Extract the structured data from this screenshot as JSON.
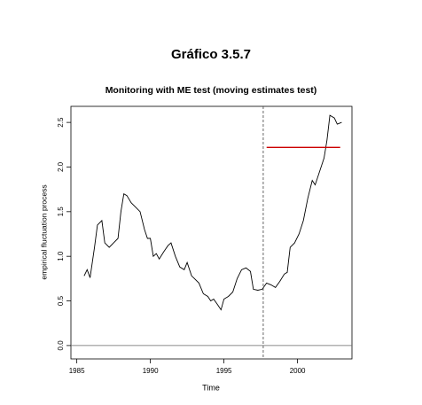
{
  "chart_data": {
    "type": "line",
    "title": "Gráfico 3.5.7",
    "subtitle": "Monitoring with ME test (moving estimates test)",
    "xlabel": "Time",
    "ylabel": "empirical fluctuation process",
    "x": [
      1985.5,
      1985.7,
      1985.9,
      1986.2,
      1986.4,
      1986.7,
      1986.9,
      1987.2,
      1987.5,
      1987.8,
      1988.0,
      1988.2,
      1988.4,
      1988.7,
      1989.0,
      1989.3,
      1989.6,
      1989.8,
      1990.0,
      1990.2,
      1990.4,
      1990.6,
      1990.9,
      1991.2,
      1991.4,
      1991.7,
      1992.0,
      1992.3,
      1992.5,
      1992.8,
      1993.0,
      1993.3,
      1993.6,
      1993.9,
      1994.1,
      1994.3,
      1994.6,
      1994.8,
      1995.0,
      1995.3,
      1995.6,
      1995.9,
      1996.2,
      1996.5,
      1996.8,
      1997.0,
      1997.3,
      1997.6,
      1997.9,
      1998.2,
      1998.5,
      1998.8,
      1999.1,
      1999.3,
      1999.5,
      1999.8,
      2000.1,
      2000.4,
      2000.7,
      2001.0,
      2001.2,
      2001.5,
      2001.8,
      2002.0,
      2002.2,
      2002.5,
      2002.7,
      2003.0
    ],
    "values": [
      0.78,
      0.85,
      0.76,
      1.1,
      1.35,
      1.4,
      1.15,
      1.1,
      1.15,
      1.2,
      1.5,
      1.7,
      1.68,
      1.6,
      1.55,
      1.5,
      1.3,
      1.2,
      1.2,
      1.0,
      1.03,
      0.97,
      1.05,
      1.12,
      1.15,
      1.0,
      0.88,
      0.85,
      0.93,
      0.78,
      0.75,
      0.7,
      0.58,
      0.55,
      0.5,
      0.52,
      0.45,
      0.4,
      0.52,
      0.55,
      0.6,
      0.75,
      0.85,
      0.87,
      0.83,
      0.63,
      0.62,
      0.63,
      0.7,
      0.68,
      0.65,
      0.72,
      0.8,
      0.82,
      1.1,
      1.15,
      1.25,
      1.4,
      1.65,
      1.85,
      1.8,
      1.95,
      2.1,
      2.3,
      2.58,
      2.55,
      2.48,
      2.5
    ],
    "color": "#000000",
    "boundary": {
      "x": [
        1997.9,
        2002.9
      ],
      "value": 2.22,
      "color": "#cc0000"
    },
    "vline": 1997.67,
    "hline": 0,
    "xlim": [
      1984.6,
      2003.7
    ],
    "xticks": [
      1985,
      1990,
      1995,
      2000
    ],
    "ylim": [
      -0.15,
      2.68
    ],
    "yticks": [
      {
        "value": 0,
        "label": "0.0"
      },
      0.5,
      {
        "value": 1,
        "label": "1.0"
      },
      1.5,
      {
        "value": 2,
        "label": "2.0"
      },
      2.5
    ]
  }
}
